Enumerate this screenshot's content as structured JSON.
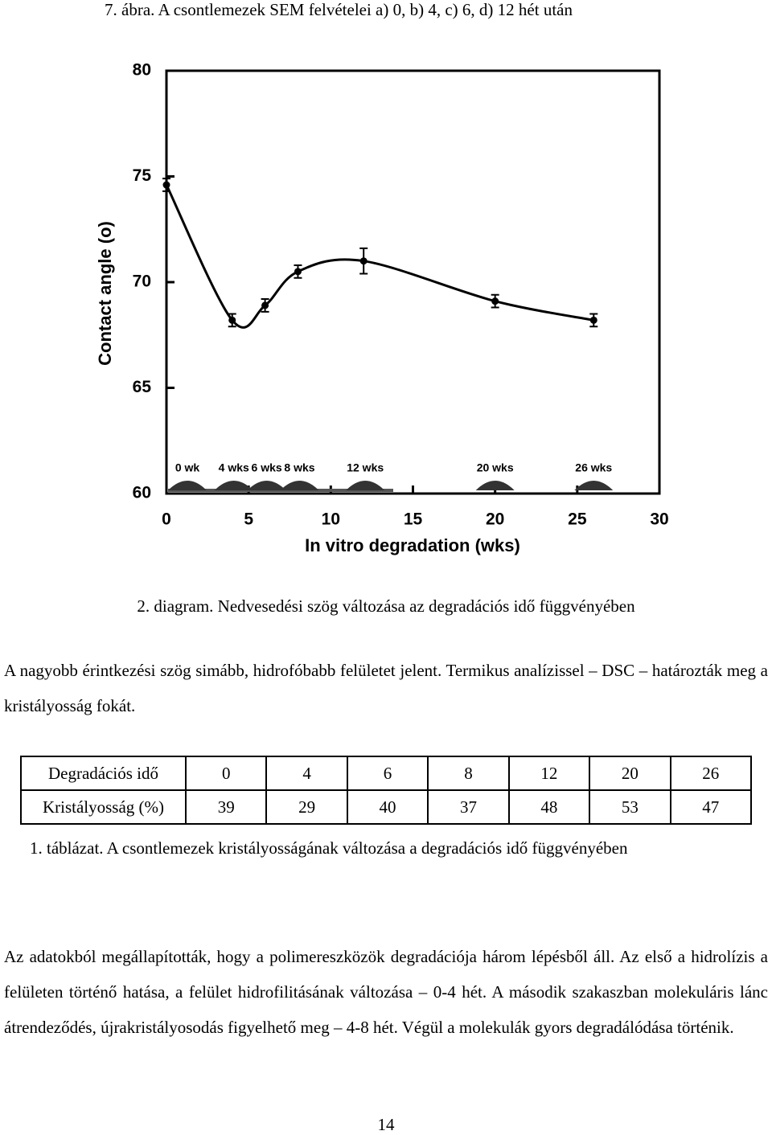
{
  "header": {
    "title": "7. ábra. A csontlemezek SEM felvételei a) 0, b) 4, c) 6, d) 12 hét után"
  },
  "chart_data": {
    "type": "line",
    "x_label": "In vitro degradation (wks)",
    "y_label": "Contact angle (o)",
    "x": [
      0,
      4,
      6,
      8,
      12,
      20,
      26
    ],
    "values": [
      74.6,
      68.2,
      68.9,
      70.5,
      71.0,
      69.1,
      68.2
    ],
    "errors": [
      0.3,
      0.3,
      0.3,
      0.3,
      0.6,
      0.3,
      0.3
    ],
    "color": "#000000",
    "xlim": [
      0,
      30
    ],
    "xticks": [
      0,
      5,
      10,
      15,
      20,
      25,
      30
    ],
    "ylim": [
      60,
      80
    ],
    "yticks": [
      60,
      65,
      70,
      75,
      80
    ],
    "grid": false,
    "annotations": [
      "0 wk",
      "4 wks",
      "6 wks",
      "8 wks",
      "12 wks",
      "20 wks",
      "26 wks"
    ]
  },
  "chart_caption": "2. diagram. Nedvesedési szög változása az degradációs idő függvényében",
  "paragraphs": [
    "A nagyobb érintkezési szög simább, hidrofóbabb felületet jelent. Termikus analízissel – DSC – határozták meg a kristályosság fokát.",
    "Az adatokból megállapították, hogy a polimereszközök degradációja három lépésből áll. Az első a hidrolízis a felületen történő hatása, a felület hidrofilitásának változása – 0-4 hét. A második szakaszban molekuláris lánc átrendeződés, újrakristályosodás figyelhető meg – 4-8 hét. Végül a molekulák gyors degradálódása történik."
  ],
  "table": {
    "rows": [
      [
        "Degradációs idő",
        0,
        4,
        6,
        8,
        12,
        20,
        26
      ],
      [
        "Kristályosság (%)",
        39,
        29,
        40,
        37,
        48,
        53,
        47
      ]
    ]
  },
  "table_caption": "1. táblázat. A csontlemezek kristályosságának változása a degradációs idő függvényében",
  "page_number": "14"
}
